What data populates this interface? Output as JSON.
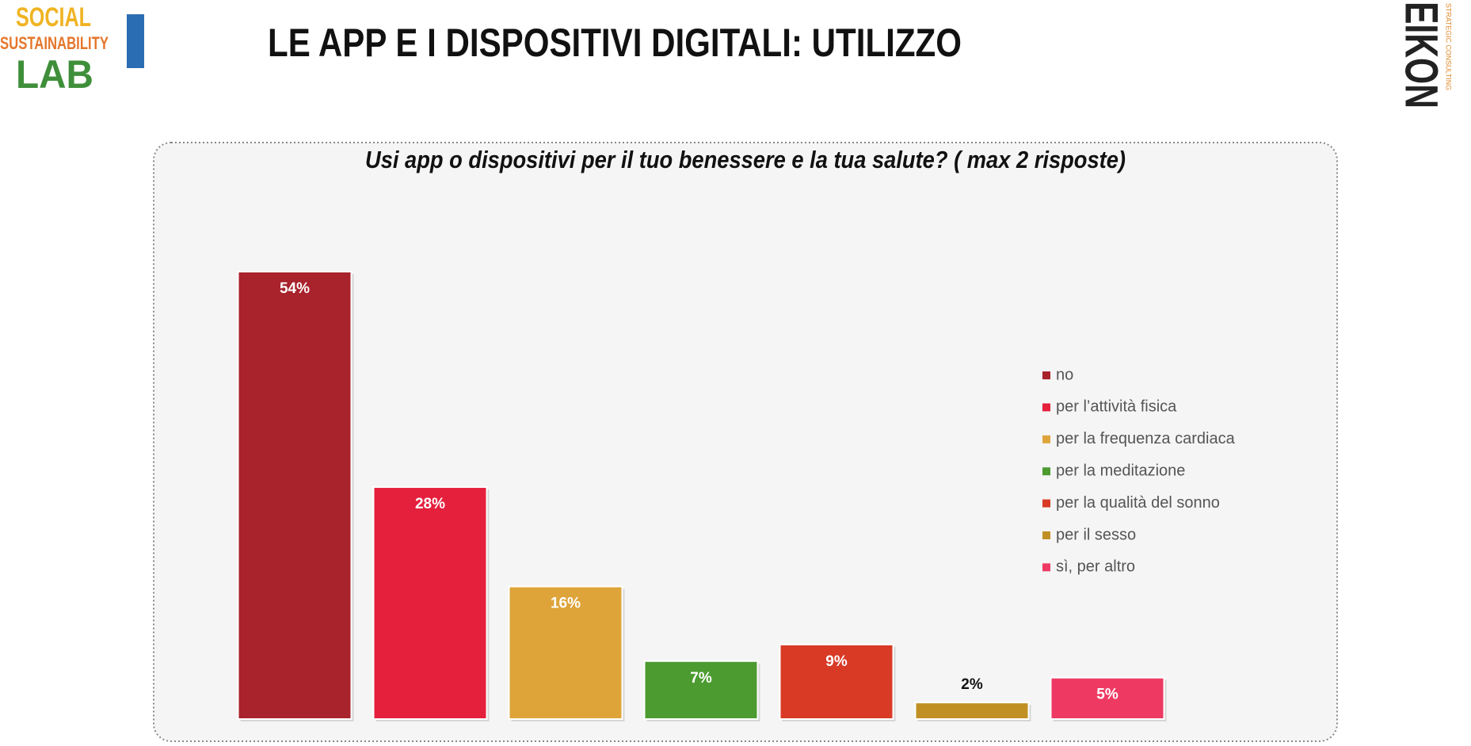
{
  "header": {
    "title": "LE APP E I DISPOSITIVI DIGITALI: UTILIZZO",
    "logo_left": [
      "SOCIAL",
      "SUSTAINABILITY",
      "LAB"
    ],
    "logo_right": [
      "EIKON",
      "STRATEGIC CONSULTING"
    ]
  },
  "chart_data": {
    "type": "bar",
    "title": "Usi app o dispositivi per il tuo benessere e la tua salute? ( max 2 risposte)",
    "legend": "right",
    "series": [
      {
        "name": "no",
        "color": "#a8232c",
        "values": [
          54
        ],
        "value_labels": [
          "54%"
        ]
      },
      {
        "name": "per l’attività fisica",
        "color": "#e4203d",
        "values": [
          28
        ],
        "value_labels": [
          "28%"
        ]
      },
      {
        "name": "per la frequenza cardiaca",
        "color": "#dea43a",
        "values": [
          16
        ],
        "value_labels": [
          "16%"
        ]
      },
      {
        "name": "per la meditazione",
        "color": "#4c9b30",
        "values": [
          7
        ],
        "value_labels": [
          "7%"
        ]
      },
      {
        "name": "per la qualità del sonno",
        "color": "#d93a26",
        "values": [
          9
        ],
        "value_labels": [
          "9%"
        ]
      },
      {
        "name": "per il sesso",
        "color": "#c19025",
        "values": [
          2
        ],
        "value_labels": [
          "2%"
        ]
      },
      {
        "name": "sì, per altro",
        "color": "#ee3a63",
        "values": [
          5
        ],
        "value_labels": [
          "5%"
        ]
      }
    ]
  }
}
